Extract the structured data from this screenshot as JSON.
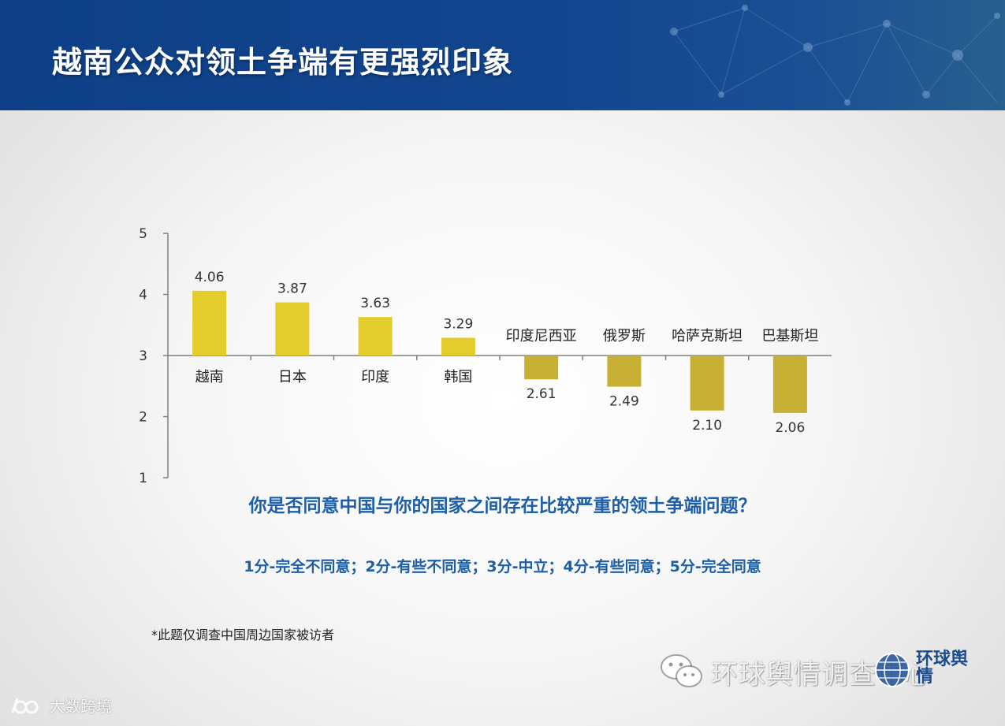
{
  "header": {
    "title": "越南公众对领土争端有更强烈印象"
  },
  "chart_data": {
    "type": "bar",
    "baseline": 3,
    "ylim": [
      1,
      5
    ],
    "yticks": [
      "1",
      "2",
      "3",
      "4",
      "5"
    ],
    "categories": [
      "越南",
      "日本",
      "印度",
      "韩国",
      "印度尼西亚",
      "俄罗斯",
      "哈萨克斯坦",
      "巴基斯坦"
    ],
    "values": [
      4.06,
      3.87,
      3.63,
      3.29,
      2.61,
      2.49,
      2.1,
      2.06
    ],
    "value_labels": [
      "4.06",
      "3.87",
      "3.63",
      "3.29",
      "2.61",
      "2.49",
      "2.10",
      "2.06"
    ],
    "colors": {
      "above": "#e3cd2c",
      "below": "#c8b034"
    },
    "grid": false
  },
  "question": "你是否同意中国与你的国家之间存在比较严重的领土争端问题？",
  "scale": "1分-完全不同意；2分-有些不同意；3分-中立；4分-有些同意；5分-完全同意",
  "note": "*此题仅调查中国周边国家被访者",
  "watermarks": {
    "right_text": "环球舆情调查中心",
    "logo_text": "环球舆情",
    "left_text": "大数跨境"
  }
}
